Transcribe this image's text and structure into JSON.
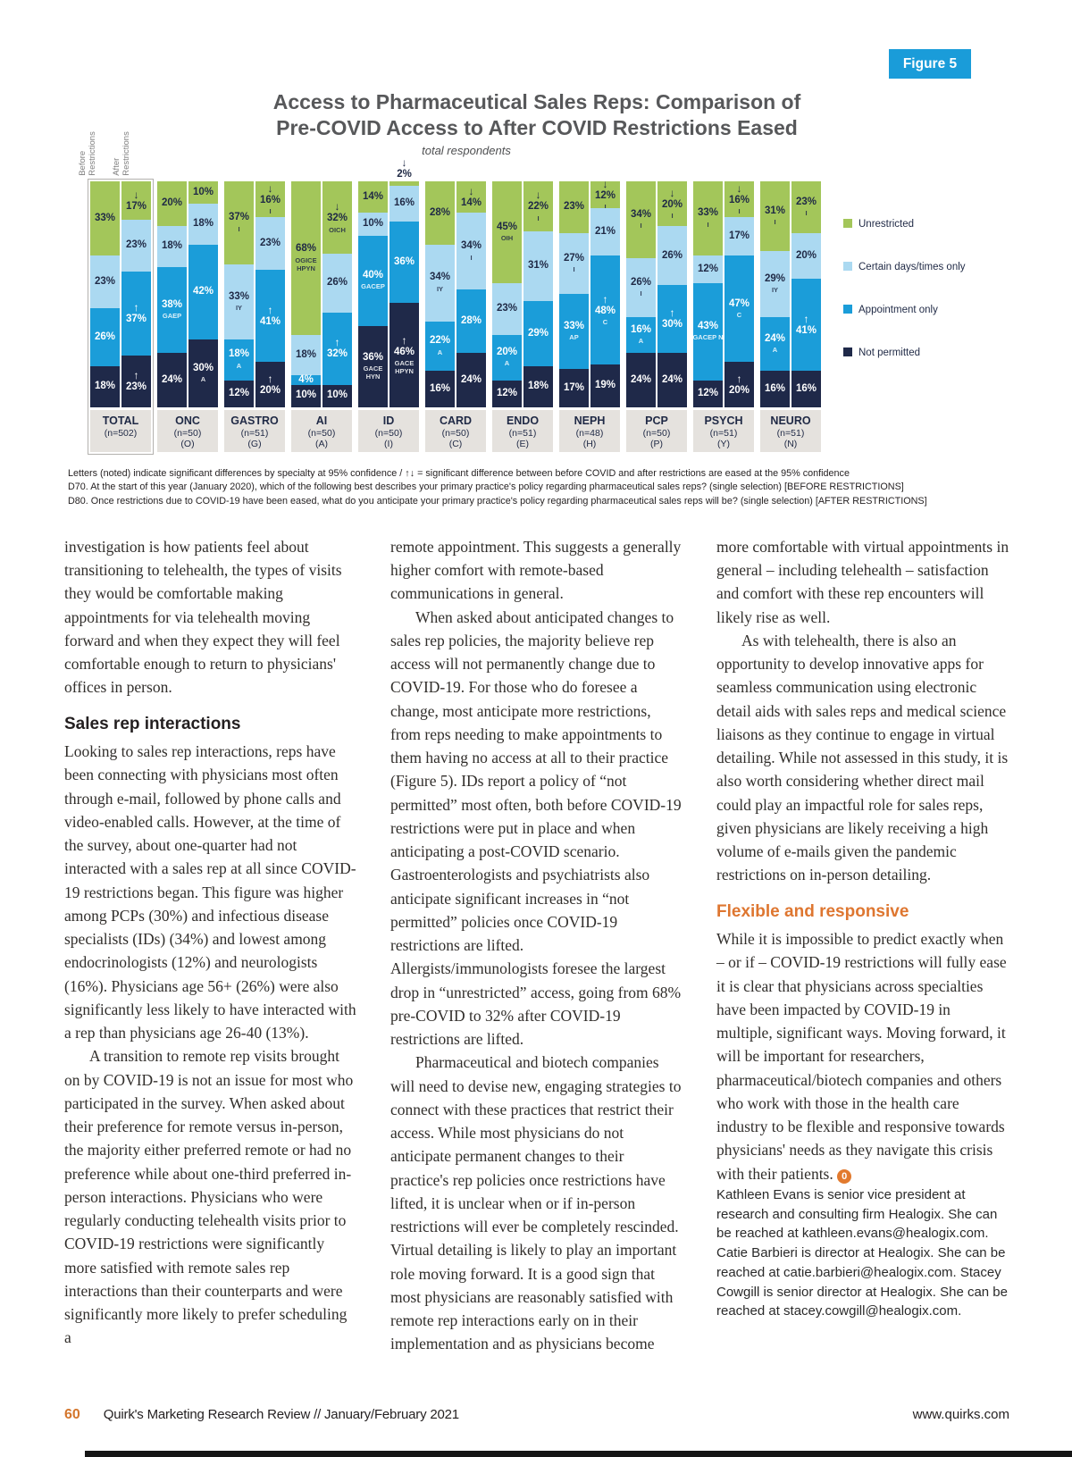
{
  "figure_badge": "Figure 5",
  "chart_data": {
    "type": "bar",
    "stacked": true,
    "title_line1": "Access to Pharmaceutical Sales Reps: Comparison of",
    "title_line2": "Pre-COVID Access to After COVID Restrictions Eased",
    "subtitle": "total respondents",
    "bar_axis_labels": [
      "Before Restrictions",
      "After Restrictions"
    ],
    "value_unit": "%",
    "legend_position": "right",
    "legend": [
      {
        "key": "unrestricted",
        "label": "Unrestricted",
        "color": "#a3c65a"
      },
      {
        "key": "certain",
        "label": "Certain days/times only",
        "color": "#abd9f1"
      },
      {
        "key": "appointment",
        "label": "Appointment only",
        "color": "#1b9dd9"
      },
      {
        "key": "not_permitted",
        "label": "Not permitted",
        "color": "#1f2949"
      }
    ],
    "segment_order_top_to_bottom": [
      "unrestricted",
      "certain",
      "appointment",
      "not_permitted"
    ],
    "groups": [
      {
        "name": "TOTAL",
        "n": "(n=502)",
        "letter": "",
        "boxed": true,
        "before": [
          {
            "v": 33,
            "k": "unrestricted"
          },
          {
            "v": 23,
            "k": "certain"
          },
          {
            "v": 26,
            "k": "appointment"
          },
          {
            "v": 18,
            "k": "not_permitted"
          }
        ],
        "after": [
          {
            "v": 17,
            "k": "unrestricted",
            "arrow": "down"
          },
          {
            "v": 23,
            "k": "certain"
          },
          {
            "v": 37,
            "k": "appointment",
            "arrow": "up"
          },
          {
            "v": 23,
            "k": "not_permitted",
            "arrow": "up"
          }
        ]
      },
      {
        "name": "ONC",
        "n": "(n=50)",
        "letter": "(O)",
        "boxed": false,
        "before": [
          {
            "v": 20,
            "k": "unrestricted"
          },
          {
            "v": 18,
            "k": "certain"
          },
          {
            "v": 38,
            "k": "appointment",
            "letters": "GAEP"
          },
          {
            "v": 24,
            "k": "not_permitted"
          }
        ],
        "after": [
          {
            "v": 10,
            "k": "unrestricted"
          },
          {
            "v": 18,
            "k": "certain"
          },
          {
            "v": 42,
            "k": "appointment"
          },
          {
            "v": 30,
            "k": "not_permitted",
            "letters": "A"
          }
        ]
      },
      {
        "name": "GASTRO",
        "n": "(n=51)",
        "letter": "(G)",
        "boxed": false,
        "before": [
          {
            "v": 37,
            "k": "unrestricted",
            "letters": "I"
          },
          {
            "v": 33,
            "k": "certain",
            "letters": "IY"
          },
          {
            "v": 18,
            "k": "appointment",
            "letters": "A"
          },
          {
            "v": 12,
            "k": "not_permitted"
          }
        ],
        "after": [
          {
            "v": 16,
            "k": "unrestricted",
            "arrow": "down",
            "letters": "I"
          },
          {
            "v": 23,
            "k": "certain"
          },
          {
            "v": 41,
            "k": "appointment",
            "arrow": "up"
          },
          {
            "v": 20,
            "k": "not_permitted",
            "arrow": "up"
          }
        ]
      },
      {
        "name": "AI",
        "n": "(n=50)",
        "letter": "(A)",
        "boxed": false,
        "before": [
          {
            "v": 68,
            "k": "unrestricted",
            "letters": "OGICE HPYN"
          },
          {
            "v": 18,
            "k": "certain"
          },
          {
            "v": 4,
            "k": "appointment"
          },
          {
            "v": 10,
            "k": "not_permitted"
          }
        ],
        "after": [
          {
            "v": 32,
            "k": "unrestricted",
            "arrow": "down",
            "letters": "OICH"
          },
          {
            "v": 26,
            "k": "certain"
          },
          {
            "v": 32,
            "k": "appointment",
            "arrow": "up"
          },
          {
            "v": 10,
            "k": "not_permitted"
          }
        ]
      },
      {
        "name": "ID",
        "n": "(n=50)",
        "letter": "(I)",
        "boxed": false,
        "before": [
          {
            "v": 14,
            "k": "unrestricted"
          },
          {
            "v": 10,
            "k": "certain"
          },
          {
            "v": 40,
            "k": "appointment",
            "letters": "GACEP"
          },
          {
            "v": 36,
            "k": "not_permitted",
            "letters": "GACE HYN"
          }
        ],
        "after": [
          {
            "v": 2,
            "k": "unrestricted",
            "arrow": "down"
          },
          {
            "v": 16,
            "k": "certain"
          },
          {
            "v": 36,
            "k": "appointment"
          },
          {
            "v": 46,
            "k": "not_permitted",
            "arrow": "up",
            "letters": "GACE HPYN"
          }
        ]
      },
      {
        "name": "CARD",
        "n": "(n=50)",
        "letter": "(C)",
        "boxed": false,
        "before": [
          {
            "v": 28,
            "k": "unrestricted"
          },
          {
            "v": 34,
            "k": "certain",
            "letters": "IY"
          },
          {
            "v": 22,
            "k": "appointment",
            "letters": "A"
          },
          {
            "v": 16,
            "k": "not_permitted"
          }
        ],
        "after": [
          {
            "v": 14,
            "k": "unrestricted",
            "arrow": "down"
          },
          {
            "v": 34,
            "k": "certain",
            "letters": "I"
          },
          {
            "v": 28,
            "k": "appointment"
          },
          {
            "v": 24,
            "k": "not_permitted"
          }
        ]
      },
      {
        "name": "ENDO",
        "n": "(n=51)",
        "letter": "(E)",
        "boxed": false,
        "before": [
          {
            "v": 45,
            "k": "unrestricted",
            "letters": "OIH"
          },
          {
            "v": 23,
            "k": "certain"
          },
          {
            "v": 20,
            "k": "appointment",
            "letters": "A"
          },
          {
            "v": 12,
            "k": "not_permitted"
          }
        ],
        "after": [
          {
            "v": 22,
            "k": "unrestricted",
            "arrow": "down",
            "letters": "I"
          },
          {
            "v": 31,
            "k": "certain"
          },
          {
            "v": 29,
            "k": "appointment"
          },
          {
            "v": 18,
            "k": "not_permitted"
          }
        ]
      },
      {
        "name": "NEPH",
        "n": "(n=48)",
        "letter": "(H)",
        "boxed": false,
        "before": [
          {
            "v": 23,
            "k": "unrestricted"
          },
          {
            "v": 27,
            "k": "certain",
            "letters": "I"
          },
          {
            "v": 33,
            "k": "appointment",
            "letters": "AP"
          },
          {
            "v": 17,
            "k": "not_permitted"
          }
        ],
        "after": [
          {
            "v": 12,
            "k": "unrestricted",
            "arrow": "down",
            "letters": "I"
          },
          {
            "v": 21,
            "k": "certain"
          },
          {
            "v": 48,
            "k": "appointment",
            "arrow": "up",
            "letters": "C"
          },
          {
            "v": 19,
            "k": "not_permitted"
          }
        ]
      },
      {
        "name": "PCP",
        "n": "(n=50)",
        "letter": "(P)",
        "boxed": false,
        "before": [
          {
            "v": 34,
            "k": "unrestricted",
            "letters": "I"
          },
          {
            "v": 26,
            "k": "certain",
            "letters": "I"
          },
          {
            "v": 16,
            "k": "appointment",
            "letters": "A"
          },
          {
            "v": 24,
            "k": "not_permitted"
          }
        ],
        "after": [
          {
            "v": 20,
            "k": "unrestricted",
            "arrow": "down",
            "letters": "I"
          },
          {
            "v": 26,
            "k": "certain"
          },
          {
            "v": 30,
            "k": "appointment",
            "arrow": "up"
          },
          {
            "v": 24,
            "k": "not_permitted"
          }
        ]
      },
      {
        "name": "PSYCH",
        "n": "(n=51)",
        "letter": "(Y)",
        "boxed": false,
        "before": [
          {
            "v": 33,
            "k": "unrestricted",
            "letters": "I"
          },
          {
            "v": 12,
            "k": "certain"
          },
          {
            "v": 43,
            "k": "appointment",
            "letters": "GACEP N"
          },
          {
            "v": 12,
            "k": "not_permitted"
          }
        ],
        "after": [
          {
            "v": 16,
            "k": "unrestricted",
            "arrow": "down",
            "letters": "I"
          },
          {
            "v": 17,
            "k": "certain"
          },
          {
            "v": 47,
            "k": "appointment",
            "letters": "C"
          },
          {
            "v": 20,
            "k": "not_permitted",
            "arrow": "up"
          }
        ]
      },
      {
        "name": "NEURO",
        "n": "(n=51)",
        "letter": "(N)",
        "boxed": false,
        "before": [
          {
            "v": 31,
            "k": "unrestricted",
            "letters": "I"
          },
          {
            "v": 29,
            "k": "certain",
            "letters": "IY"
          },
          {
            "v": 24,
            "k": "appointment",
            "letters": "A"
          },
          {
            "v": 16,
            "k": "not_permitted"
          }
        ],
        "after": [
          {
            "v": 23,
            "k": "unrestricted",
            "letters": "I"
          },
          {
            "v": 20,
            "k": "certain"
          },
          {
            "v": 41,
            "k": "appointment",
            "arrow": "up"
          },
          {
            "v": 16,
            "k": "not_permitted"
          }
        ]
      }
    ],
    "footnotes": [
      "Letters (noted) indicate significant differences by specialty at 95% confidence / ↑↓ = significant difference between before COVID and after restrictions are eased at the 95% confidence",
      "D70. At the start of this year (January 2020), which of the following best describes your primary practice's policy regarding pharmaceutical sales reps? (single selection) [BEFORE RESTRICTIONS]",
      "D80. Once restrictions due to COVID-19 have been eased, what do you anticipate your primary practice's policy regarding pharmaceutical sales reps will be? (single selection) [AFTER RESTRICTIONS]"
    ]
  },
  "article": {
    "col1": {
      "p1": "investigation is how patients feel about transitioning to telehealth, the types of visits they would be comfortable making appointments for via telehealth moving forward and when they expect they will feel comfortable enough to return to physicians' offices in person.",
      "heading": "Sales rep interactions",
      "p2": "Looking to sales rep interactions, reps have been connecting with physicians most often through e-mail, followed by phone calls and video-enabled calls. However, at the time of the survey, about one-quarter had not interacted with a sales rep at all since COVID-19 restrictions began. This figure was higher among PCPs (30%) and infectious disease specialists (IDs) (34%) and lowest among endocrinologists (12%) and neurologists (16%). Physicians age 56+ (26%) were also significantly less likely to have interacted with a rep than physicians age 26-40 (13%).",
      "p3": "A transition to remote rep visits brought on by COVID-19 is not an issue for most who participated in the survey. When asked about their preference for remote versus in-person, the majority either preferred remote or had no preference while about one-third preferred in-person interactions. Physicians who were regularly conducting telehealth visits prior to COVID-19 restrictions were significantly more satisfied with remote sales rep interactions than their counterparts and were significantly more likely to prefer scheduling a"
    },
    "col2": {
      "p1": "remote appointment. This suggests a generally higher comfort with remote-based communications in general.",
      "p2": "When asked about anticipated changes to sales rep policies, the majority believe rep access will not permanently change due to COVID-19. For those who do foresee a change, most anticipate more restrictions, from reps needing to make appointments to them having no access at all to their practice (Figure 5). IDs report a policy of “not permitted” most often, both before COVID-19 restrictions were put in place and when anticipating a post-COVID scenario. Gastroenterologists and psychiatrists also anticipate significant increases in “not permitted” policies once COVID-19 restrictions are lifted. Allergists/immunologists foresee the largest drop in “unrestricted” access, going from 68% pre-COVID to 32% after COVID-19 restrictions are lifted.",
      "p3": "Pharmaceutical and biotech companies will need to devise new, engaging strategies to connect with these practices that restrict their access. While most physicians do not anticipate permanent changes to their practice's rep policies once restrictions have lifted, it is unclear when or if in-person restrictions will ever be completely rescinded. Virtual detailing is likely to play an important role moving forward. It is a good sign that most physicians are reasonably satisfied with remote rep interactions early on in their implementation and as physicians become"
    },
    "col3": {
      "p1": "more comfortable with virtual appointments in general – including telehealth – satisfaction and comfort with these rep encounters will likely rise as well.",
      "p2": "As with telehealth, there is also an opportunity to develop innovative apps for seamless communication using electronic detail aids with sales reps and medical science liaisons as they continue to engage in virtual detailing. While not assessed in this study, it is also worth considering whether direct mail could play an impactful role for sales reps, given physicians are likely receiving a high volume of e-mails given the pandemic restrictions on in-person detailing.",
      "heading": "Flexible and responsive",
      "p3": "While it is impossible to predict exactly when – or if – COVID-19 restrictions will fully ease it is clear that physicians across specialties have been impacted by COVID-19 in multiple, significant ways. Moving forward, it will be important for researchers, pharmaceutical/biotech companies and others who work with those in the health care industry to be flexible and responsive towards physicians' needs as they navigate this crisis with their patients.",
      "end_marker": "0",
      "bio": "Kathleen Evans is senior vice president at research and consulting firm Healogix. She can be reached at kathleen.evans@healogix.com. Catie Barbieri is director at Healogix. She can be reached at catie.barbieri@healogix.com. Stacey Cowgill is senior director at Healogix. She can be reached at stacey.cowgill@healogix.com."
    }
  },
  "footer": {
    "page_number": "60",
    "publication": "Quirk's Marketing Research Review // January/February 2021",
    "website": "www.quirks.com"
  }
}
